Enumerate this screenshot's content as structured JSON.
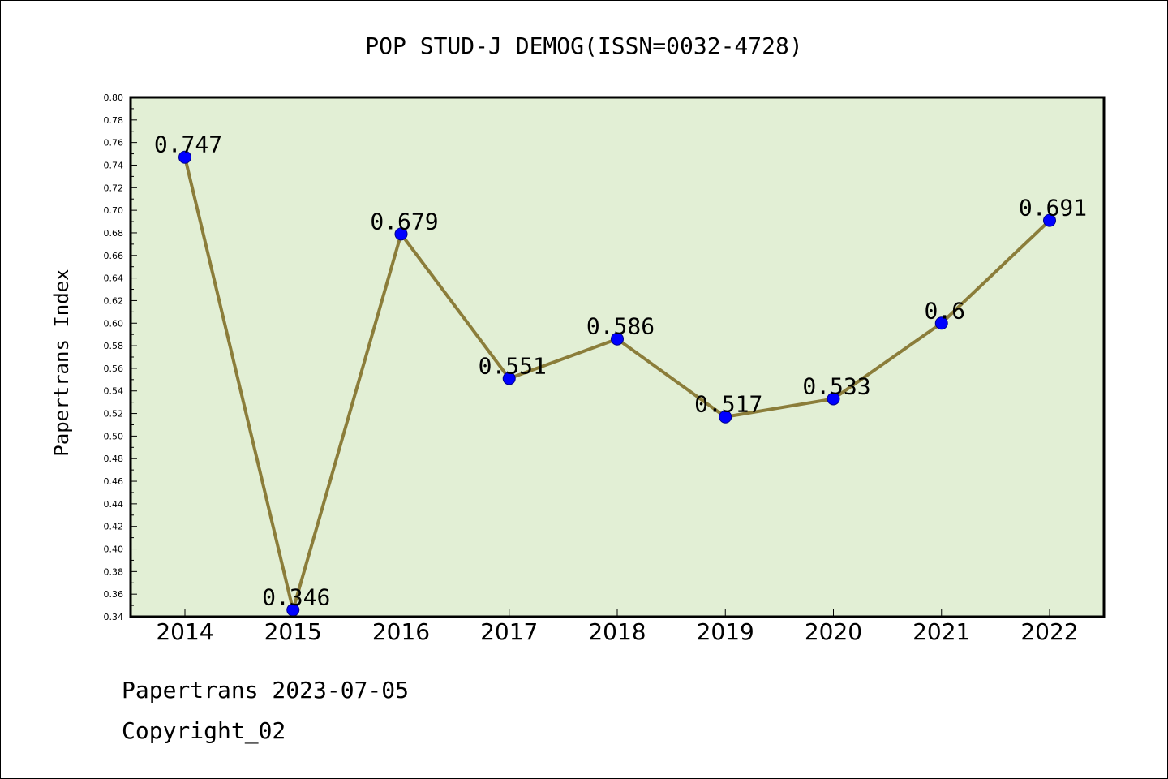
{
  "chart_data": {
    "type": "line",
    "title": "POP STUD-J DEMOG(ISSN=0032-4728)",
    "xlabel": "",
    "ylabel": "Papertrans Index",
    "categories": [
      "2014",
      "2015",
      "2016",
      "2017",
      "2018",
      "2019",
      "2020",
      "2021",
      "2022"
    ],
    "values": [
      0.747,
      0.346,
      0.679,
      0.551,
      0.586,
      0.517,
      0.533,
      0.6,
      0.691
    ],
    "data_labels": [
      "0.747",
      "0.346",
      "0.679",
      "0.551",
      "0.586",
      "0.517",
      "0.533",
      "0.6",
      "0.691"
    ],
    "ylim": [
      0.34,
      0.8
    ],
    "yticks": [
      "0.34",
      "0.36",
      "0.38",
      "0.40",
      "0.42",
      "0.44",
      "0.46",
      "0.48",
      "0.50",
      "0.52",
      "0.54",
      "0.56",
      "0.58",
      "0.60",
      "0.62",
      "0.64",
      "0.66",
      "0.68",
      "0.70",
      "0.72",
      "0.74",
      "0.76",
      "0.78",
      "0.80"
    ],
    "grid": false,
    "colors": {
      "plot_background": "#e2efd5",
      "line": "#8b7d3a",
      "marker": "#0000ff"
    }
  },
  "footer": {
    "line1": "Papertrans 2023-07-05",
    "line2": "Copyright_02"
  }
}
